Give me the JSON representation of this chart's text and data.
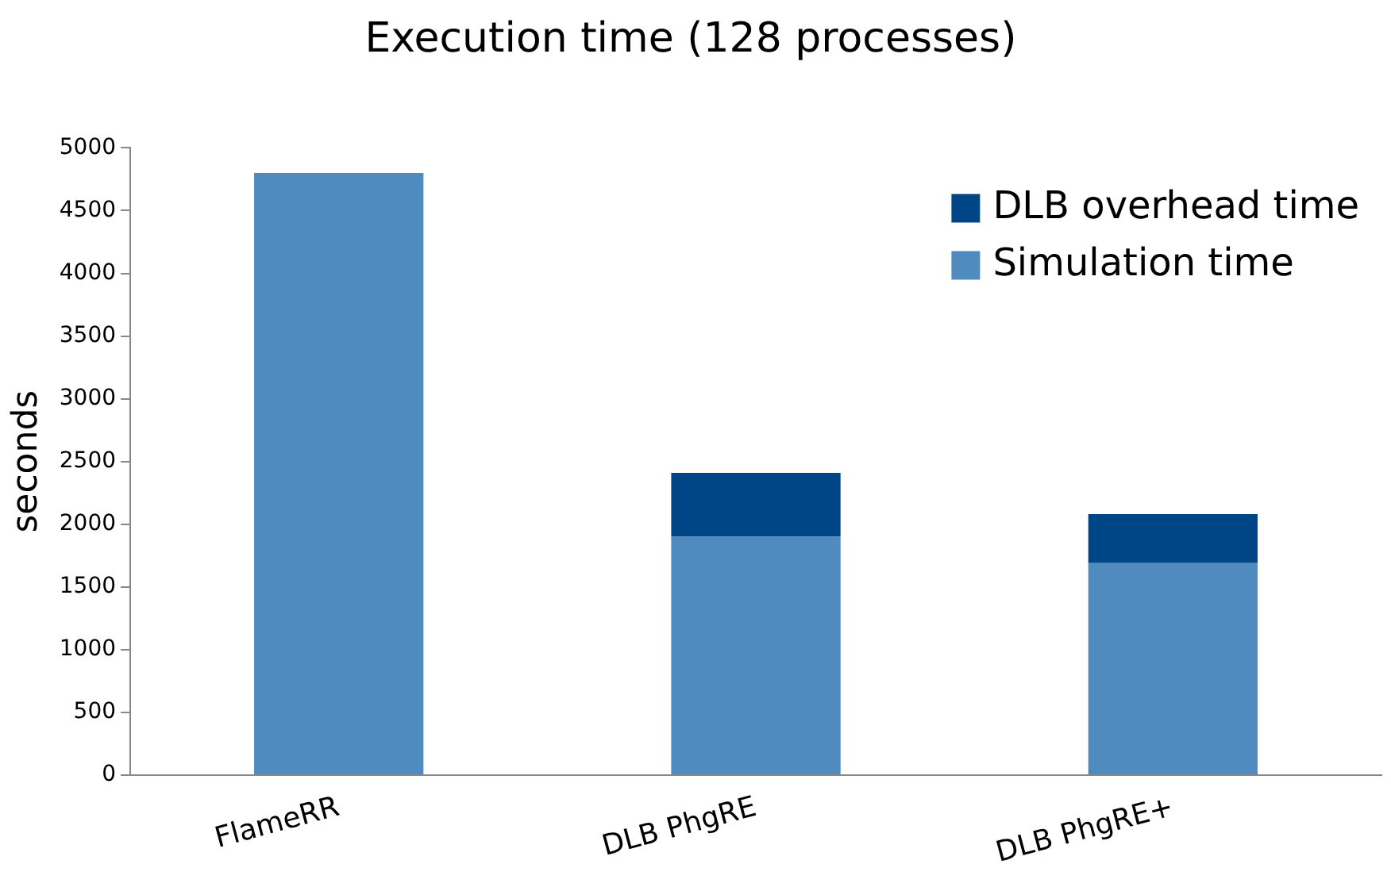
{
  "chart_data": {
    "type": "bar",
    "title": "Execution time (128 processes)",
    "ylabel": "seconds",
    "categories": [
      "FlameRR",
      "DLB PhgRE",
      "DLB PhgRE+"
    ],
    "stacked": true,
    "series": [
      {
        "name": "Simulation time",
        "color": "#4f8bbf",
        "values": [
          4800,
          1900,
          1690
        ]
      },
      {
        "name": "DLB overhead time",
        "color": "#004586",
        "values": [
          null,
          510,
          390
        ]
      }
    ],
    "ylim": [
      0,
      5000
    ],
    "yticks": [
      0,
      500,
      1000,
      1500,
      2000,
      2500,
      3000,
      3500,
      4000,
      4500,
      5000
    ],
    "grid": false,
    "legend": "top right"
  }
}
